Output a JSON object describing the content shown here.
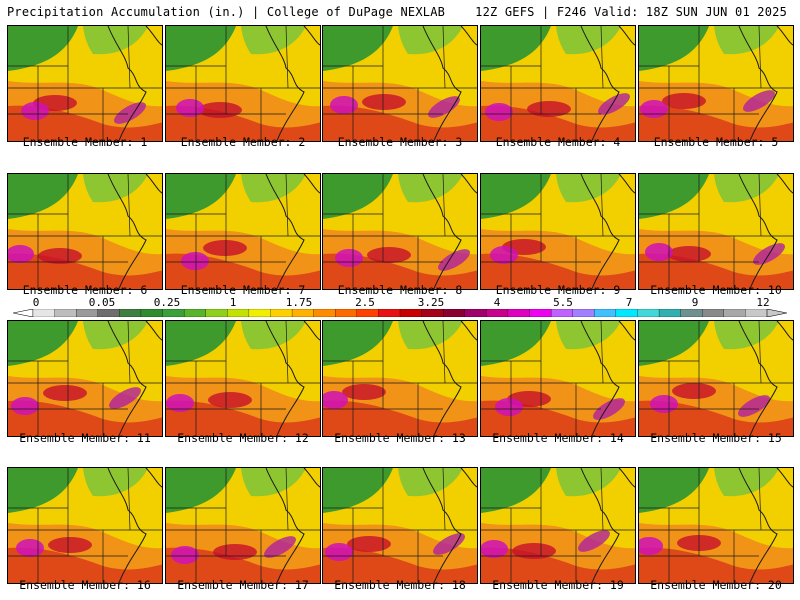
{
  "header": {
    "left_title": "Precipitation Accumulation (in.) | College of DuPage NEXLAB",
    "right_title": "12Z GEFS | F246 Valid: 18Z SUN JUN 01 2025"
  },
  "panels": [
    {
      "label": "Ensemble Member: 1",
      "hotspots": 2
    },
    {
      "label": "Ensemble Member: 2",
      "hotspots": 1
    },
    {
      "label": "Ensemble Member: 3",
      "hotspots": 2
    },
    {
      "label": "Ensemble Member: 4",
      "hotspots": 2
    },
    {
      "label": "Ensemble Member: 5",
      "hotspots": 2
    },
    {
      "label": "Ensemble Member: 6",
      "hotspots": 1
    },
    {
      "label": "Ensemble Member: 7",
      "hotspots": 1
    },
    {
      "label": "Ensemble Member: 8",
      "hotspots": 2
    },
    {
      "label": "Ensemble Member: 9",
      "hotspots": 1
    },
    {
      "label": "Ensemble Member: 10",
      "hotspots": 2
    },
    {
      "label": "Ensemble Member: 11",
      "hotspots": 2
    },
    {
      "label": "Ensemble Member: 12",
      "hotspots": 1
    },
    {
      "label": "Ensemble Member: 13",
      "hotspots": 1
    },
    {
      "label": "Ensemble Member: 14",
      "hotspots": 2
    },
    {
      "label": "Ensemble Member: 15",
      "hotspots": 2
    },
    {
      "label": "Ensemble Member: 16",
      "hotspots": 1
    },
    {
      "label": "Ensemble Member: 17",
      "hotspots": 2
    },
    {
      "label": "Ensemble Member: 18",
      "hotspots": 2
    },
    {
      "label": "Ensemble Member: 19",
      "hotspots": 2
    },
    {
      "label": "Ensemble Member: 20",
      "hotspots": 1
    }
  ],
  "colorbar": {
    "tick_labels": [
      "0",
      "0.05",
      "0.25",
      "1",
      "1.75",
      "2.5",
      "3.25",
      "4",
      "5.5",
      "7",
      "9",
      "12"
    ],
    "colors": [
      "#e6e6e6",
      "#bdbdbd",
      "#9a9a9a",
      "#6e6e6e",
      "#3f7f3f",
      "#2e8b2e",
      "#3aa03a",
      "#58b52a",
      "#8fd01c",
      "#c4e200",
      "#f2ee00",
      "#ffd000",
      "#ffb000",
      "#ff8c00",
      "#ff6a00",
      "#ff4000",
      "#e81010",
      "#c80000",
      "#a40018",
      "#8a0030",
      "#a0006a",
      "#c8008c",
      "#e000c0",
      "#f000f0",
      "#c060ff",
      "#a080ff",
      "#40c0ff",
      "#00e8ff",
      "#40d8d8",
      "#30b0b0",
      "#6e9090",
      "#8a8a8a",
      "#a8a8a8",
      "#c8c8c8"
    ]
  }
}
